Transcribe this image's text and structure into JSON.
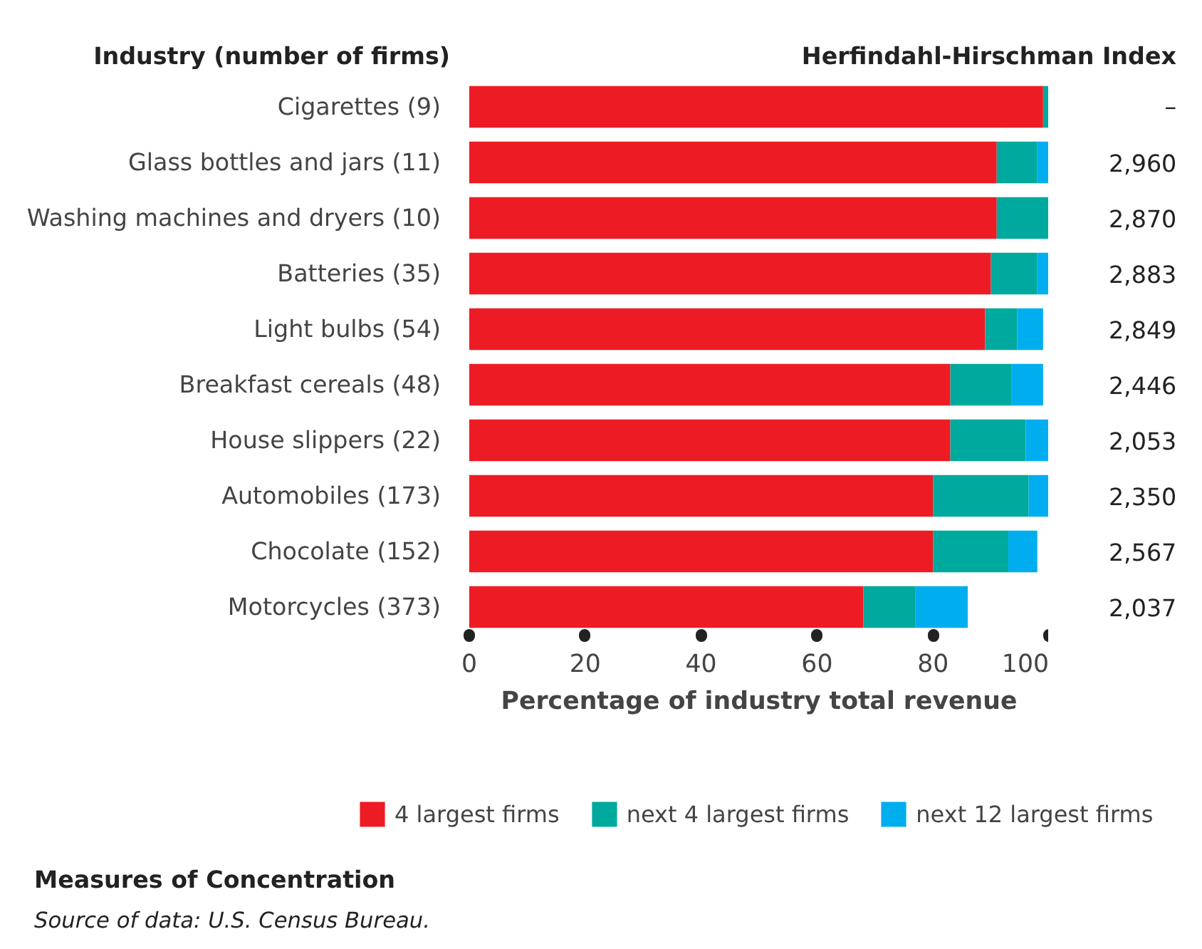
{
  "chart_data": {
    "type": "bar",
    "orientation": "horizontal",
    "stacked": true,
    "title": "Measures of Concentration",
    "ylabel": "Industry (number of firms)",
    "xlabel": "Percentage of industry total revenue",
    "categories": [
      "Cigarettes (9)",
      "Glass bottles and jars (11)",
      "Washing machines and dryers (10)",
      "Batteries (35)",
      "Light bulbs (54)",
      "Breakfast cereals (48)",
      "House slippers (22)",
      "Automobiles (173)",
      "Chocolate (152)",
      "Motorcycles (373)"
    ],
    "series": [
      {
        "name": "4 largest firms",
        "color": "#ed1c24",
        "values": [
          99,
          91,
          91,
          90,
          89,
          83,
          83,
          80,
          80,
          68
        ]
      },
      {
        "name": "next 4 largest firms",
        "color": "#00a99d",
        "values": [
          1,
          7,
          9,
          8,
          5.5,
          10.5,
          13,
          16.5,
          13,
          9
        ]
      },
      {
        "name": "next 12 largest firms",
        "color": "#00aeef",
        "values": [
          null,
          2,
          null,
          2,
          4.5,
          5.5,
          4,
          3.5,
          5,
          9
        ]
      }
    ],
    "xlim": [
      0,
      100
    ],
    "xticks": [
      0,
      20,
      40,
      60,
      80,
      100
    ],
    "grid": false,
    "legend": "bottom",
    "annotations": [
      "Herfindahl-Hirschman Index",
      "–",
      "2,960",
      "2,870",
      "2,883",
      "2,849",
      "2,446",
      "2,053",
      "2,350",
      "2,567",
      "2,037",
      "Source of data: U.S. Census Bureau."
    ]
  }
}
